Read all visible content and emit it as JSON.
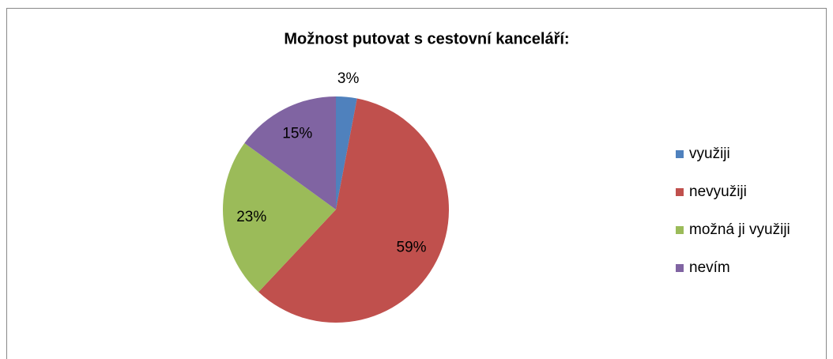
{
  "chart_data": {
    "type": "pie",
    "title": "Možnost putovat s cestovní kanceláří:",
    "categories": [
      "využiji",
      "nevyužiji",
      "možná ji využiji",
      "nevím"
    ],
    "values": [
      3,
      59,
      23,
      15
    ],
    "value_labels": [
      "3%",
      "59%",
      "23%",
      "15%"
    ],
    "colors": [
      "#4f81bd",
      "#c0504d",
      "#9bbb59",
      "#8064a2"
    ],
    "legend": "right"
  }
}
